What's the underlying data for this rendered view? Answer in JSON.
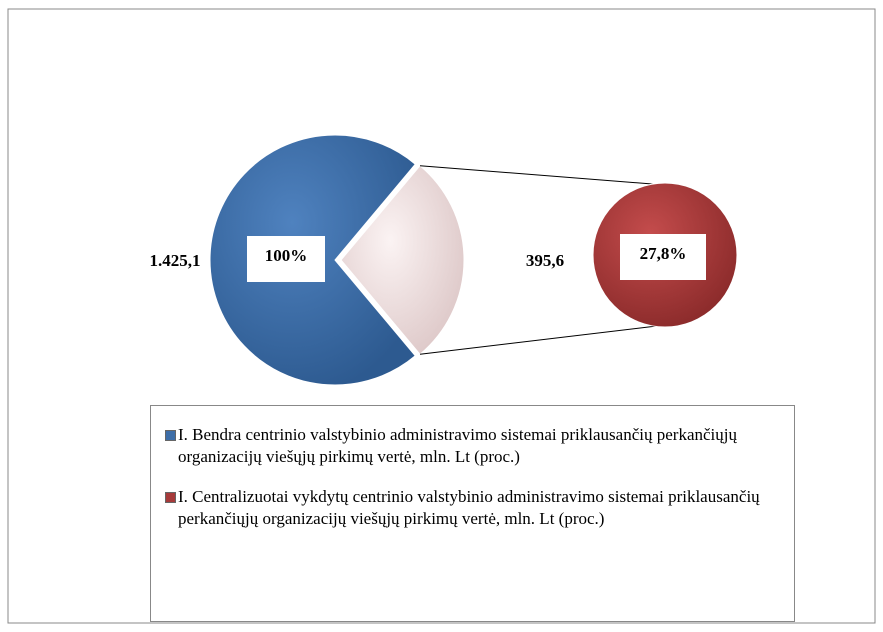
{
  "chart_data": {
    "type": "pie-of-pie",
    "categories": [
      "I. Bendra centrinio valstybinio administravimo sistemai priklausančių perkančiųjų organizacijų viešųjų pirkimų vertė, mln. Lt (proc.)",
      "I. Centralizuotai vykdytų centrinio valstybinio administravimo sistemai priklausančių perkančiųjų organizacijų viešųjų pirkimų vertė, mln. Lt (proc.)"
    ],
    "values": [
      1425.1,
      395.6
    ],
    "value_labels": [
      "1.425,1",
      "395,6"
    ],
    "percents": [
      100,
      27.8
    ],
    "percent_labels": [
      "100%",
      "27,8%"
    ],
    "colors": [
      "#3d6ea8",
      "#a63a3a"
    ]
  }
}
